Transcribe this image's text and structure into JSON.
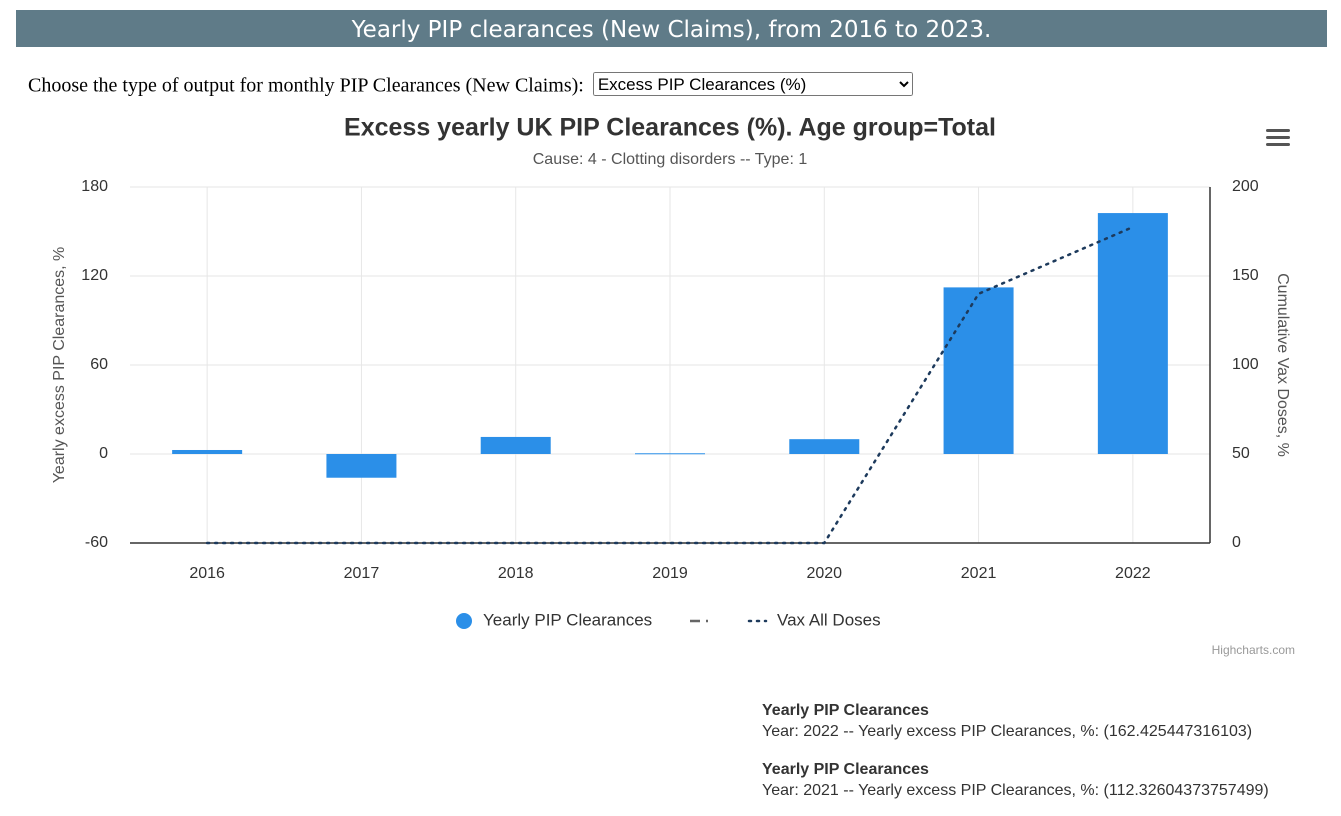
{
  "header": {
    "title": "Yearly PIP clearances (New Claims), from 2016 to 2023."
  },
  "control": {
    "label": "Choose the type of output for monthly PIP Clearances (New Claims):",
    "selected": "Excess PIP Clearances (%)"
  },
  "chart_data": {
    "type": "bar",
    "title": "Excess yearly UK PIP Clearances (%). Age group=Total",
    "subtitle": "Cause: 4 - Clotting disorders -- Type: 1",
    "y_label": "Yearly excess PIP Clearances, %",
    "y2_label": "Cumulative Vax Doses, %",
    "categories": [
      "2016",
      "2017",
      "2018",
      "2019",
      "2020",
      "2021",
      "2022"
    ],
    "series": [
      {
        "name": "Yearly PIP Clearances",
        "type": "bar",
        "color": "#2b8fe8",
        "values": [
          2.7,
          -16,
          11.5,
          0.5,
          10,
          112.32604373757499,
          162.425447316103
        ]
      },
      {
        "name": "Vax All Doses",
        "type": "line",
        "axis": "y2",
        "color": "#1d3a5c",
        "values": [
          0,
          0,
          0,
          0,
          0,
          140,
          177.5
        ]
      }
    ],
    "ylim": [
      -60,
      180
    ],
    "yticks": [
      -60,
      0,
      60,
      120,
      180
    ],
    "y2lim": [
      0,
      200
    ],
    "y2ticks": [
      0,
      50,
      100,
      150,
      200
    ],
    "grid": true,
    "legend": "bottom",
    "credit": "Highcharts.com"
  },
  "tooltips": [
    {
      "title": "Yearly PIP Clearances",
      "text": "Year: 2022 -- Yearly excess PIP Clearances, %: (162.425447316103)"
    },
    {
      "title": "Yearly PIP Clearances",
      "text": "Year: 2021 -- Yearly excess PIP Clearances, %: (112.32604373757499)"
    }
  ]
}
